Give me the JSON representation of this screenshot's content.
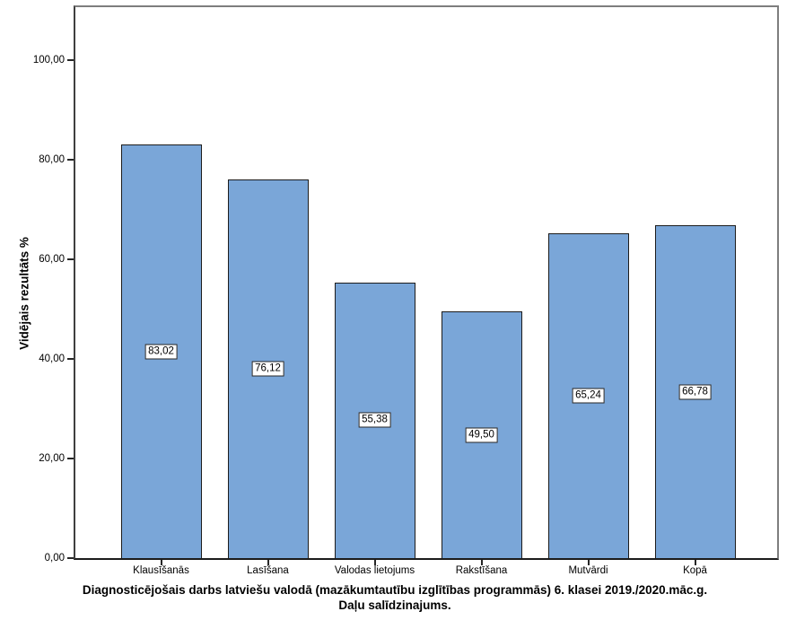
{
  "chart_data": {
    "type": "bar",
    "title_line1": "Diagnosticējošais darbs latviešu valodā (mazākumtautību izglītības programmās) 6. klasei 2019./2020.māc.g.",
    "title_line2": "Daļu salīdzinajums.",
    "ylabel": "Vidējais rezultāts %",
    "categories": [
      "Klausīšanās",
      "Lasīšana",
      "Valodas lietojums",
      "Rakstīšana",
      "Mutvārdi",
      "Kopā"
    ],
    "values": [
      83.02,
      76.12,
      55.38,
      49.5,
      65.24,
      66.78
    ],
    "value_labels": [
      "83,02",
      "76,12",
      "55,38",
      "49,50",
      "65,24",
      "66,78"
    ],
    "y_tick_values": [
      0,
      20,
      40,
      60,
      80,
      100
    ],
    "y_tick_labels": [
      "0,00",
      "20,00",
      "40,00",
      "60,00",
      "80,00",
      "100,00"
    ],
    "ylim": [
      0,
      111.4
    ],
    "grid": false,
    "legend": null,
    "bar_color": "#7AA6D8",
    "bar_border_color": "#1C1C1C",
    "axis_color": "#2E2E2E",
    "frame_color": "#7E7E7E"
  }
}
